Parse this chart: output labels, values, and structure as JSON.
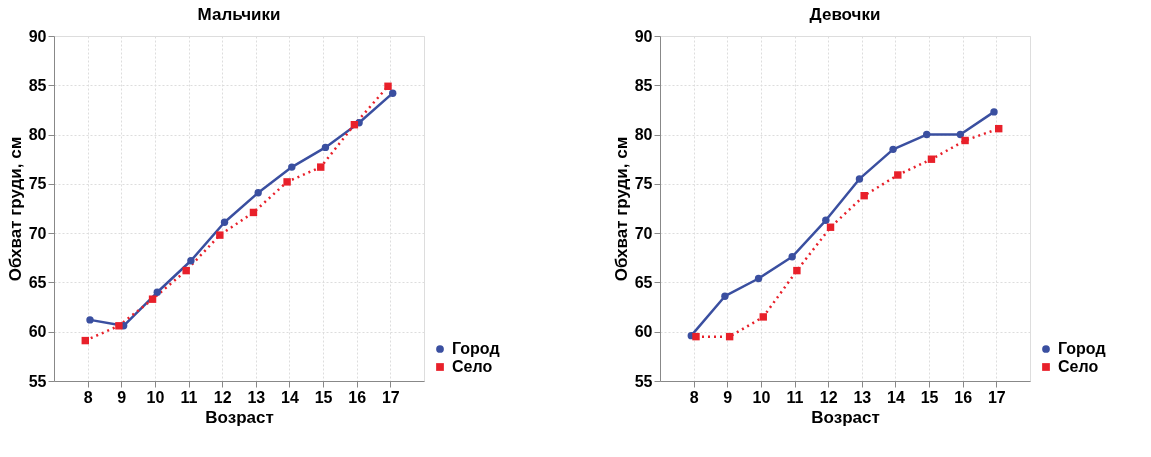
{
  "chart_data": [
    {
      "type": "line",
      "title": "Мальчики",
      "xlabel": "Возраст",
      "ylabel": "Обхват груди, см",
      "xlim": [
        7,
        18
      ],
      "xticks": [
        8,
        9,
        10,
        11,
        12,
        13,
        14,
        15,
        16,
        17
      ],
      "ylim": [
        55,
        90
      ],
      "yticks": [
        55,
        60,
        65,
        70,
        75,
        80,
        85,
        90
      ],
      "grid": true,
      "legend": "bottom right",
      "series": [
        {
          "name": "Город",
          "color": "#3a4fa0",
          "marker": "circle",
          "line_style": "solid",
          "x": [
            8.07,
            9.07,
            10.07,
            11.07,
            12.07,
            13.07,
            14.07,
            15.07,
            16.07,
            17.07
          ],
          "values": [
            61.2,
            60.6,
            64.0,
            67.2,
            71.1,
            74.1,
            76.7,
            78.7,
            81.2,
            84.2
          ]
        },
        {
          "name": "Село",
          "color": "#e8202a",
          "marker": "square",
          "line_style": "dotted",
          "x": [
            7.93,
            8.93,
            9.93,
            10.93,
            11.93,
            12.93,
            13.93,
            14.93,
            15.93,
            16.93
          ],
          "values": [
            59.1,
            60.6,
            63.3,
            66.2,
            69.8,
            72.1,
            75.2,
            76.7,
            81.0,
            84.9
          ]
        }
      ]
    },
    {
      "type": "line",
      "title": "Девочки",
      "xlabel": "Возраст",
      "ylabel": "Обхват груди, см",
      "xlim": [
        7,
        18
      ],
      "xticks": [
        8,
        9,
        10,
        11,
        12,
        13,
        14,
        15,
        16,
        17
      ],
      "ylim": [
        55,
        90
      ],
      "yticks": [
        55,
        60,
        65,
        70,
        75,
        80,
        85,
        90
      ],
      "grid": true,
      "legend": "bottom right",
      "series": [
        {
          "name": "Город",
          "color": "#3a4fa0",
          "marker": "circle",
          "line_style": "solid",
          "x": [
            7.93,
            8.93,
            9.93,
            10.93,
            11.93,
            12.93,
            13.93,
            14.93,
            15.93,
            16.93
          ],
          "values": [
            59.6,
            63.6,
            65.4,
            67.6,
            71.3,
            75.5,
            78.5,
            80.0,
            80.0,
            82.3
          ]
        },
        {
          "name": "Село",
          "color": "#e8202a",
          "marker": "square",
          "line_style": "dotted",
          "x": [
            8.07,
            9.07,
            10.07,
            11.07,
            12.07,
            13.07,
            14.07,
            15.07,
            16.07,
            17.07
          ],
          "values": [
            59.5,
            59.5,
            61.5,
            66.2,
            70.6,
            73.8,
            75.9,
            77.5,
            79.4,
            80.6
          ]
        }
      ]
    }
  ]
}
